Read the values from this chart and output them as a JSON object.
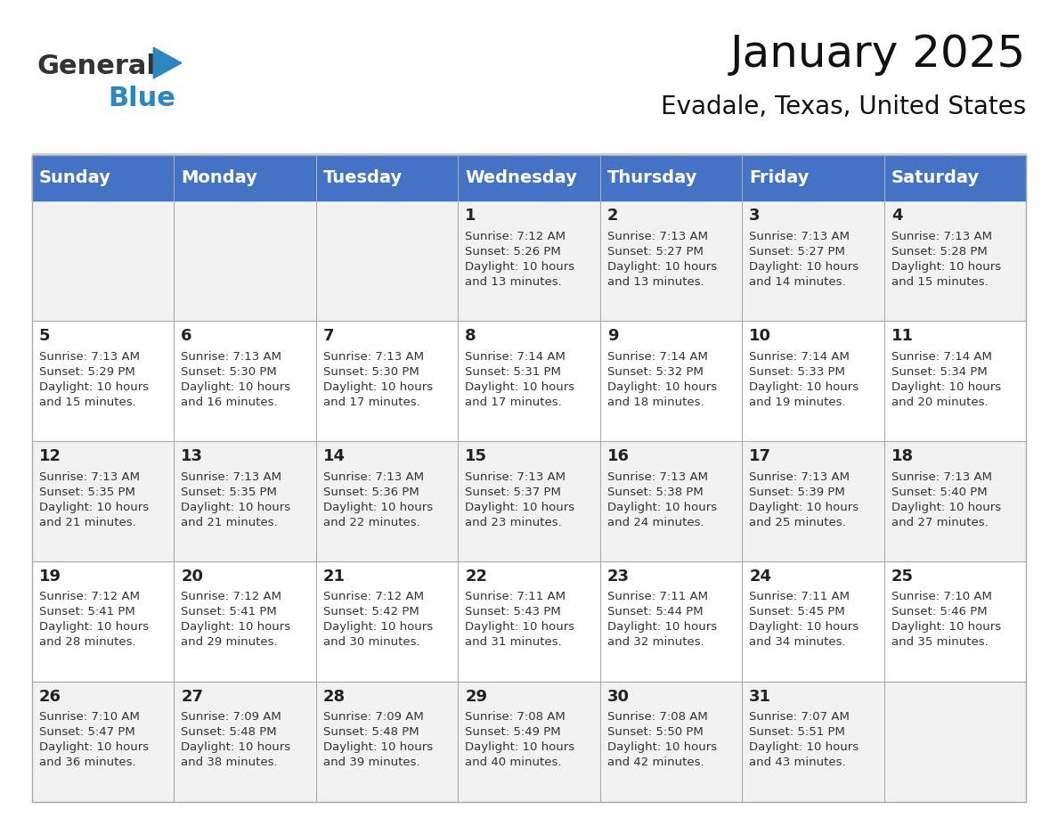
{
  "title": "January 2025",
  "subtitle": "Evadale, Texas, United States",
  "header_color": "#4472C4",
  "header_text_color": "#FFFFFF",
  "cell_bg_even": "#F2F2F2",
  "cell_bg_odd": "#FFFFFF",
  "day_names": [
    "Sunday",
    "Monday",
    "Tuesday",
    "Wednesday",
    "Thursday",
    "Friday",
    "Saturday"
  ],
  "title_fontsize": 36,
  "subtitle_fontsize": 20,
  "header_fontsize": 14,
  "cell_day_fontsize": 13,
  "cell_text_fontsize": 9.5,
  "logo_general_color": "#333333",
  "logo_blue_color": "#2E86C1",
  "calendar": [
    [
      {
        "day": "",
        "info": ""
      },
      {
        "day": "",
        "info": ""
      },
      {
        "day": "",
        "info": ""
      },
      {
        "day": "1",
        "info": "Sunrise: 7:12 AM\nSunset: 5:26 PM\nDaylight: 10 hours\nand 13 minutes."
      },
      {
        "day": "2",
        "info": "Sunrise: 7:13 AM\nSunset: 5:27 PM\nDaylight: 10 hours\nand 13 minutes."
      },
      {
        "day": "3",
        "info": "Sunrise: 7:13 AM\nSunset: 5:27 PM\nDaylight: 10 hours\nand 14 minutes."
      },
      {
        "day": "4",
        "info": "Sunrise: 7:13 AM\nSunset: 5:28 PM\nDaylight: 10 hours\nand 15 minutes."
      }
    ],
    [
      {
        "day": "5",
        "info": "Sunrise: 7:13 AM\nSunset: 5:29 PM\nDaylight: 10 hours\nand 15 minutes."
      },
      {
        "day": "6",
        "info": "Sunrise: 7:13 AM\nSunset: 5:30 PM\nDaylight: 10 hours\nand 16 minutes."
      },
      {
        "day": "7",
        "info": "Sunrise: 7:13 AM\nSunset: 5:30 PM\nDaylight: 10 hours\nand 17 minutes."
      },
      {
        "day": "8",
        "info": "Sunrise: 7:14 AM\nSunset: 5:31 PM\nDaylight: 10 hours\nand 17 minutes."
      },
      {
        "day": "9",
        "info": "Sunrise: 7:14 AM\nSunset: 5:32 PM\nDaylight: 10 hours\nand 18 minutes."
      },
      {
        "day": "10",
        "info": "Sunrise: 7:14 AM\nSunset: 5:33 PM\nDaylight: 10 hours\nand 19 minutes."
      },
      {
        "day": "11",
        "info": "Sunrise: 7:14 AM\nSunset: 5:34 PM\nDaylight: 10 hours\nand 20 minutes."
      }
    ],
    [
      {
        "day": "12",
        "info": "Sunrise: 7:13 AM\nSunset: 5:35 PM\nDaylight: 10 hours\nand 21 minutes."
      },
      {
        "day": "13",
        "info": "Sunrise: 7:13 AM\nSunset: 5:35 PM\nDaylight: 10 hours\nand 21 minutes."
      },
      {
        "day": "14",
        "info": "Sunrise: 7:13 AM\nSunset: 5:36 PM\nDaylight: 10 hours\nand 22 minutes."
      },
      {
        "day": "15",
        "info": "Sunrise: 7:13 AM\nSunset: 5:37 PM\nDaylight: 10 hours\nand 23 minutes."
      },
      {
        "day": "16",
        "info": "Sunrise: 7:13 AM\nSunset: 5:38 PM\nDaylight: 10 hours\nand 24 minutes."
      },
      {
        "day": "17",
        "info": "Sunrise: 7:13 AM\nSunset: 5:39 PM\nDaylight: 10 hours\nand 25 minutes."
      },
      {
        "day": "18",
        "info": "Sunrise: 7:13 AM\nSunset: 5:40 PM\nDaylight: 10 hours\nand 27 minutes."
      }
    ],
    [
      {
        "day": "19",
        "info": "Sunrise: 7:12 AM\nSunset: 5:41 PM\nDaylight: 10 hours\nand 28 minutes."
      },
      {
        "day": "20",
        "info": "Sunrise: 7:12 AM\nSunset: 5:41 PM\nDaylight: 10 hours\nand 29 minutes."
      },
      {
        "day": "21",
        "info": "Sunrise: 7:12 AM\nSunset: 5:42 PM\nDaylight: 10 hours\nand 30 minutes."
      },
      {
        "day": "22",
        "info": "Sunrise: 7:11 AM\nSunset: 5:43 PM\nDaylight: 10 hours\nand 31 minutes."
      },
      {
        "day": "23",
        "info": "Sunrise: 7:11 AM\nSunset: 5:44 PM\nDaylight: 10 hours\nand 32 minutes."
      },
      {
        "day": "24",
        "info": "Sunrise: 7:11 AM\nSunset: 5:45 PM\nDaylight: 10 hours\nand 34 minutes."
      },
      {
        "day": "25",
        "info": "Sunrise: 7:10 AM\nSunset: 5:46 PM\nDaylight: 10 hours\nand 35 minutes."
      }
    ],
    [
      {
        "day": "26",
        "info": "Sunrise: 7:10 AM\nSunset: 5:47 PM\nDaylight: 10 hours\nand 36 minutes."
      },
      {
        "day": "27",
        "info": "Sunrise: 7:09 AM\nSunset: 5:48 PM\nDaylight: 10 hours\nand 38 minutes."
      },
      {
        "day": "28",
        "info": "Sunrise: 7:09 AM\nSunset: 5:48 PM\nDaylight: 10 hours\nand 39 minutes."
      },
      {
        "day": "29",
        "info": "Sunrise: 7:08 AM\nSunset: 5:49 PM\nDaylight: 10 hours\nand 40 minutes."
      },
      {
        "day": "30",
        "info": "Sunrise: 7:08 AM\nSunset: 5:50 PM\nDaylight: 10 hours\nand 42 minutes."
      },
      {
        "day": "31",
        "info": "Sunrise: 7:07 AM\nSunset: 5:51 PM\nDaylight: 10 hours\nand 43 minutes."
      },
      {
        "day": "",
        "info": ""
      }
    ]
  ]
}
